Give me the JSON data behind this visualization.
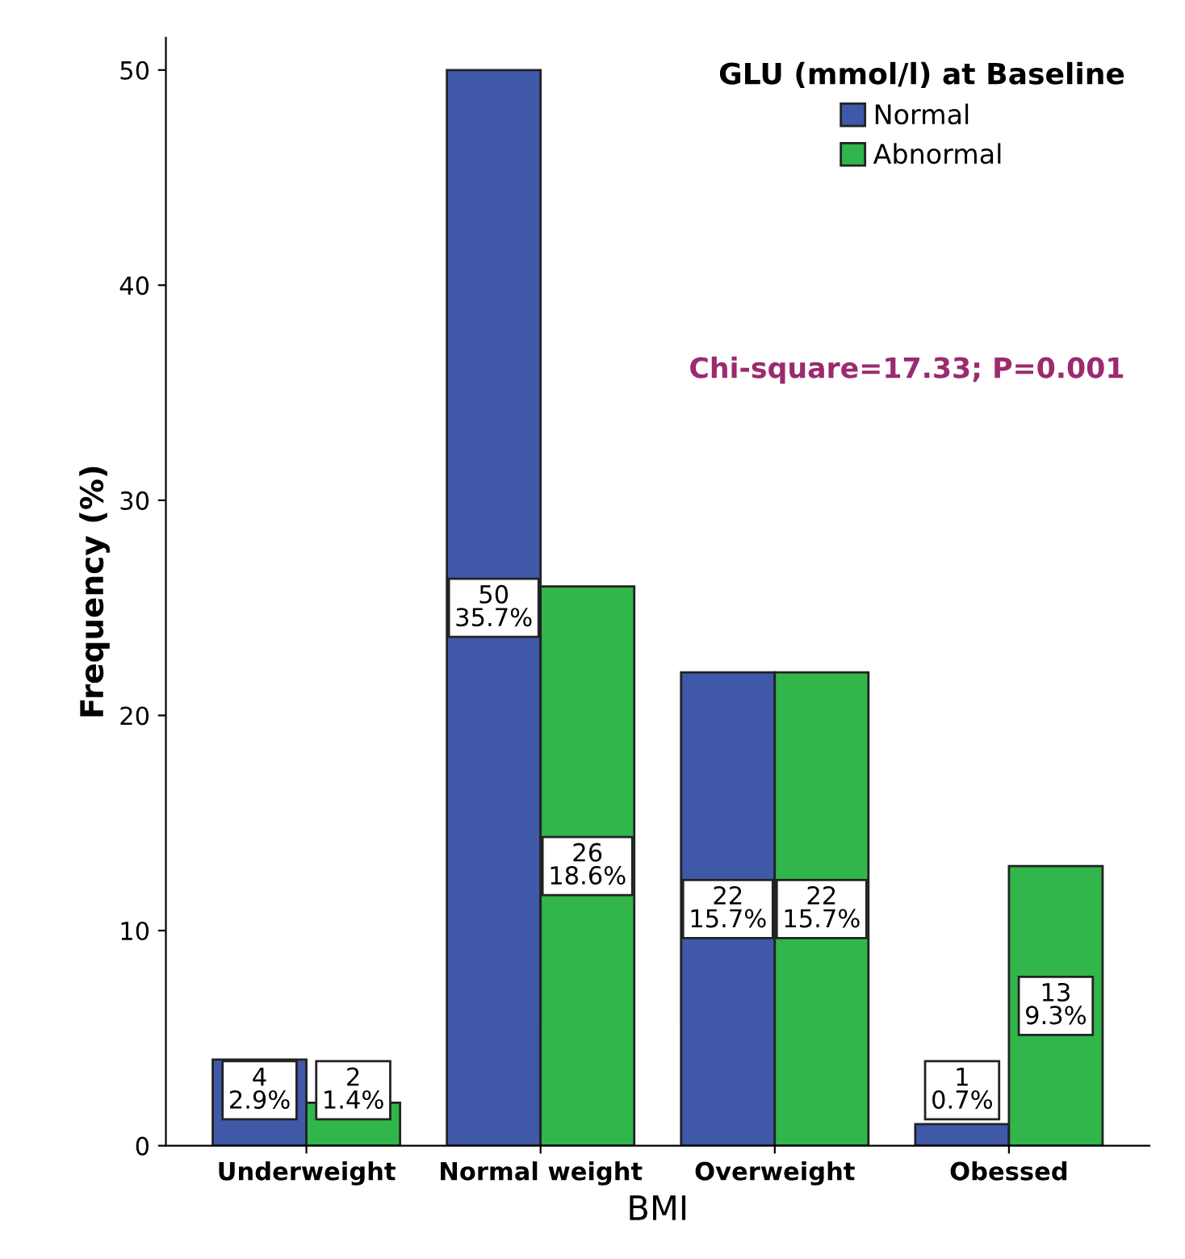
{
  "chart_data": {
    "type": "bar",
    "xlabel": "BMI",
    "ylabel": "Frequency (%)",
    "legend_title": "GLU (mmol/l) at Baseline",
    "legend": "top right",
    "grid": false,
    "categories": [
      "Underweight",
      "Normal weight",
      "Overweight",
      "Obessed"
    ],
    "series": [
      {
        "name": "Normal",
        "color": "#3f58a8",
        "values": [
          4,
          50,
          22,
          1
        ],
        "value_labels": [
          "4\n2.9%",
          "50\n35.7%",
          "22\n15.7%",
          "1\n0.7%"
        ]
      },
      {
        "name": "Abnormal",
        "color": "#31b64b",
        "values": [
          2,
          26,
          22,
          13
        ],
        "value_labels": [
          "2\n1.4%",
          "26\n18.6%",
          "22\n15.7%",
          "13\n9.3%"
        ]
      }
    ],
    "ylim": [
      0,
      51.5
    ],
    "yticks": [
      0,
      10,
      20,
      30,
      40,
      50
    ],
    "annotations": [
      "Chi-square=17.33; P=0.001"
    ]
  }
}
